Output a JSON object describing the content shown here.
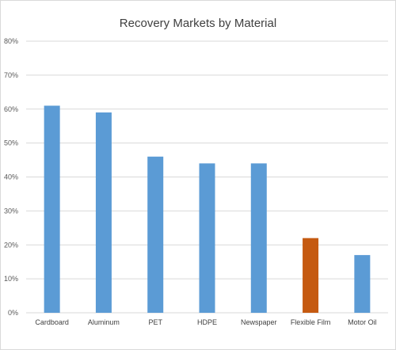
{
  "chart_data": {
    "type": "bar",
    "title": "Recovery Markets by Material",
    "xlabel": "",
    "ylabel": "",
    "categories": [
      "Cardboard",
      "Aluminum",
      "PET",
      "HDPE",
      "Newspaper",
      "Flexible Film",
      "Motor Oil"
    ],
    "values": [
      0.61,
      0.59,
      0.46,
      0.44,
      0.44,
      0.22,
      0.17
    ],
    "ylim": [
      0,
      0.8
    ],
    "yticks": [
      "0%",
      "10%",
      "20%",
      "30%",
      "40%",
      "50%",
      "60%",
      "70%",
      "80%"
    ],
    "grid": true,
    "legend": "none",
    "colors": {
      "bar_default": "#5b9bd5",
      "bar_highlight": "#c55a11",
      "grid": "#d9d9d9"
    },
    "highlight_index": 5
  }
}
